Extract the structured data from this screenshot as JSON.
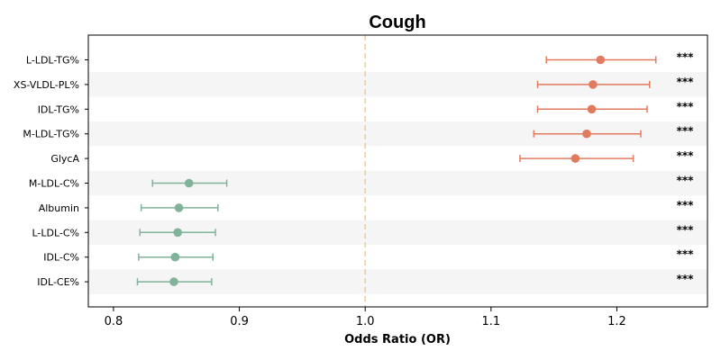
{
  "chart_data": {
    "type": "forest",
    "title": "Cough",
    "xlabel": "Odds Ratio (OR)",
    "xlim": [
      0.78,
      1.272
    ],
    "xticks": [
      0.8,
      0.9,
      1.0,
      1.1,
      1.2
    ],
    "xtick_labels": [
      "0.8",
      "0.9",
      "1.0",
      "1.1",
      "1.2"
    ],
    "reference_line": 1.0,
    "grid": false,
    "row_shading": "alternating",
    "colors": {
      "positive": "#E07B5F",
      "negative": "#81B29A",
      "reference": "#F2CC8F",
      "band": "#F5F5F5"
    },
    "rows": [
      {
        "label": "L-LDL-TG%",
        "or": 1.187,
        "lo": 1.144,
        "hi": 1.231,
        "sig": "***"
      },
      {
        "label": "XS-VLDL-PL%",
        "or": 1.181,
        "lo": 1.137,
        "hi": 1.226,
        "sig": "***"
      },
      {
        "label": "IDL-TG%",
        "or": 1.18,
        "lo": 1.137,
        "hi": 1.224,
        "sig": "***"
      },
      {
        "label": "M-LDL-TG%",
        "or": 1.176,
        "lo": 1.134,
        "hi": 1.219,
        "sig": "***"
      },
      {
        "label": "GlycA",
        "or": 1.167,
        "lo": 1.123,
        "hi": 1.213,
        "sig": "***"
      },
      {
        "label": "M-LDL-C%",
        "or": 0.86,
        "lo": 0.831,
        "hi": 0.89,
        "sig": "***"
      },
      {
        "label": "Albumin",
        "or": 0.852,
        "lo": 0.822,
        "hi": 0.883,
        "sig": "***"
      },
      {
        "label": "L-LDL-C%",
        "or": 0.851,
        "lo": 0.821,
        "hi": 0.881,
        "sig": "***"
      },
      {
        "label": "IDL-C%",
        "or": 0.849,
        "lo": 0.82,
        "hi": 0.879,
        "sig": "***"
      },
      {
        "label": "IDL-CE%",
        "or": 0.848,
        "lo": 0.819,
        "hi": 0.878,
        "sig": "***"
      }
    ]
  }
}
